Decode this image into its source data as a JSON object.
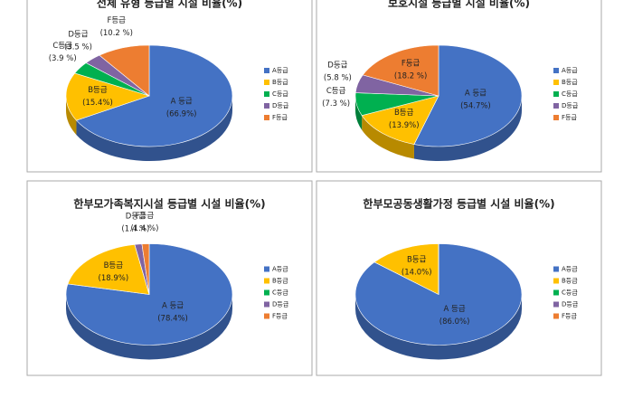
{
  "chart_data": [
    {
      "type": "pie",
      "title": "전체 유형 등급별 시설 비율(%)",
      "categories": [
        "A등급",
        "B등급",
        "C등급",
        "D등급",
        "F등급"
      ],
      "slice_labels": [
        "A 등급",
        "B등급",
        "C등급",
        "D등급",
        "F등급"
      ],
      "values": [
        66.9,
        15.4,
        3.9,
        3.5,
        10.2
      ],
      "value_labels": [
        "(66.9%)",
        "(15.4%)",
        "(3.9 %)",
        "(3.5 %)",
        "(10.2 %)"
      ],
      "colors": [
        "#4472c4",
        "#ffc000",
        "#00b050",
        "#8064a2",
        "#ed7d31"
      ],
      "legend": "right"
    },
    {
      "type": "pie",
      "title": "보호시설 등급별 시설 비율(%)",
      "categories": [
        "A등급",
        "B등급",
        "C등급",
        "D등급",
        "F등급"
      ],
      "slice_labels": [
        "A 등급",
        "B등급",
        "C등급",
        "D등급",
        "F등급"
      ],
      "values": [
        54.7,
        13.9,
        7.3,
        5.8,
        18.2
      ],
      "value_labels": [
        "(54.7%)",
        "(13.9%)",
        "(7.3 %)",
        "(5.8 %)",
        "(18.2 %)"
      ],
      "colors": [
        "#4472c4",
        "#ffc000",
        "#00b050",
        "#8064a2",
        "#ed7d31"
      ],
      "legend": "right"
    },
    {
      "type": "pie",
      "title": "한부모가족복지시설 등급별 시설 비율(%)",
      "categories": [
        "A등급",
        "B등급",
        "C등급",
        "D등급",
        "F등급"
      ],
      "slice_labels": [
        "A 등급",
        "B등급",
        null,
        "D등급",
        "F등급"
      ],
      "values": [
        78.4,
        18.9,
        0,
        1.4,
        1.4
      ],
      "value_labels": [
        "(78.4%)",
        "(18.9%)",
        null,
        "(1.4 %)",
        "(1.4 %)"
      ],
      "colors": [
        "#4472c4",
        "#ffc000",
        "#00b050",
        "#8064a2",
        "#ed7d31"
      ],
      "legend": "right"
    },
    {
      "type": "pie",
      "title": "한부모공동생활가정 등급별 시설 비율(%)",
      "categories": [
        "A등급",
        "B등급",
        "C등급",
        "D등급",
        "F등급"
      ],
      "slice_labels": [
        "A 등급",
        "B등급",
        null,
        null,
        null
      ],
      "values": [
        86.0,
        14.0,
        0,
        0,
        0
      ],
      "value_labels": [
        "(86.0%)",
        "(14.0%)",
        null,
        null,
        null
      ],
      "colors": [
        "#4472c4",
        "#ffc000",
        "#00b050",
        "#8064a2",
        "#ed7d31"
      ],
      "legend": "right"
    }
  ]
}
